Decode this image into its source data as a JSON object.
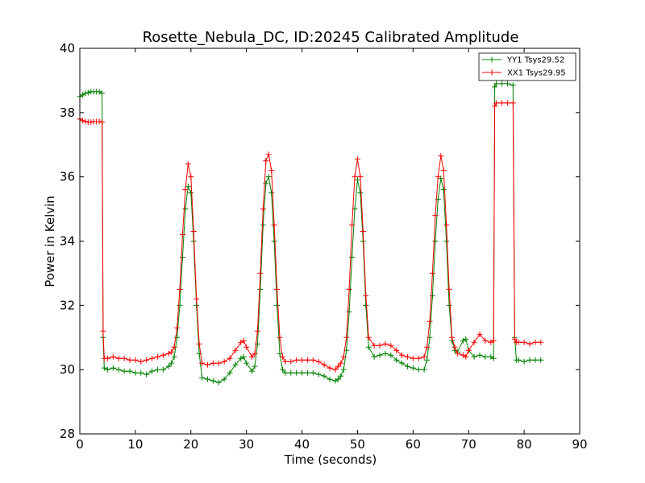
{
  "chart_data": {
    "type": "line",
    "title": "Rosette_Nebula_DC, ID:20245 Calibrated Amplitude",
    "xlabel": "Time (seconds)",
    "ylabel": "Power in Kelvin",
    "xlim": [
      0,
      90
    ],
    "ylim": [
      28,
      40
    ],
    "xticks": [
      "0",
      "10",
      "20",
      "30",
      "40",
      "50",
      "60",
      "70",
      "80",
      "90"
    ],
    "yticks": [
      "28",
      "30",
      "32",
      "34",
      "36",
      "38",
      "40"
    ],
    "grid": false,
    "legend_position": "top-right",
    "series": [
      {
        "name": "YY1 Tsys29.52",
        "color": "#008000",
        "marker": "plus",
        "x": [
          0.0,
          0.5,
          1.0,
          1.5,
          2.0,
          2.5,
          3.0,
          3.5,
          4.0,
          4.2,
          4.4,
          5.0,
          6.0,
          7.0,
          8.0,
          9.0,
          10.0,
          11.0,
          12.0,
          13.0,
          14.0,
          15.0,
          16.0,
          16.5,
          17.0,
          17.5,
          18.0,
          18.5,
          19.0,
          19.5,
          20.0,
          20.5,
          21.0,
          21.5,
          22.0,
          23.0,
          24.0,
          25.0,
          26.0,
          27.0,
          28.0,
          29.0,
          29.5,
          30.0,
          31.0,
          31.5,
          32.0,
          32.5,
          33.0,
          33.5,
          34.0,
          34.5,
          35.0,
          35.5,
          36.0,
          36.5,
          37.0,
          38.0,
          39.0,
          40.0,
          41.0,
          42.0,
          43.0,
          44.0,
          45.0,
          46.0,
          46.5,
          47.0,
          47.5,
          48.0,
          48.5,
          49.0,
          49.5,
          50.0,
          50.5,
          51.0,
          51.5,
          52.0,
          53.0,
          54.0,
          55.0,
          56.0,
          57.0,
          58.0,
          59.0,
          60.0,
          61.0,
          62.0,
          62.5,
          63.0,
          63.5,
          64.0,
          64.5,
          65.0,
          65.5,
          66.0,
          66.5,
          67.0,
          67.5,
          68.0,
          69.0,
          69.5,
          70.0,
          71.0,
          72.0,
          73.0,
          74.0,
          74.5,
          74.7,
          75.0,
          76.0,
          77.0,
          78.0,
          78.3,
          78.6,
          79.0,
          80.0,
          81.0,
          82.0,
          83.0
        ],
        "values": [
          38.5,
          38.55,
          38.6,
          38.62,
          38.65,
          38.65,
          38.65,
          38.65,
          38.6,
          31.0,
          30.05,
          30.0,
          30.05,
          30.0,
          29.95,
          29.95,
          29.9,
          29.9,
          29.85,
          29.95,
          30.0,
          30.0,
          30.1,
          30.2,
          30.4,
          31.0,
          32.0,
          33.5,
          35.0,
          35.7,
          35.5,
          34.0,
          32.0,
          30.5,
          29.75,
          29.7,
          29.65,
          29.6,
          29.7,
          29.9,
          30.15,
          30.35,
          30.4,
          30.2,
          29.95,
          30.1,
          30.8,
          32.5,
          34.5,
          35.8,
          36.0,
          35.5,
          34.0,
          32.0,
          30.5,
          30.0,
          29.9,
          29.9,
          29.9,
          29.9,
          29.9,
          29.9,
          29.85,
          29.8,
          29.7,
          29.65,
          29.7,
          29.8,
          30.0,
          30.6,
          31.8,
          33.5,
          35.0,
          35.9,
          35.5,
          34.0,
          32.0,
          30.7,
          30.4,
          30.45,
          30.5,
          30.45,
          30.3,
          30.2,
          30.1,
          30.05,
          30.0,
          30.0,
          30.3,
          31.0,
          32.3,
          34.0,
          35.3,
          35.95,
          35.6,
          34.0,
          32.0,
          30.9,
          30.6,
          30.55,
          30.9,
          30.95,
          30.6,
          30.4,
          30.45,
          30.4,
          30.4,
          30.35,
          38.8,
          38.9,
          38.9,
          38.9,
          38.85,
          31.0,
          30.3,
          30.3,
          30.25,
          30.3,
          30.3,
          30.3
        ]
      },
      {
        "name": "XX1 Tsys29.95",
        "color": "#ff0000",
        "marker": "plus",
        "x": [
          0.0,
          0.5,
          1.0,
          1.5,
          2.0,
          2.5,
          3.0,
          3.5,
          4.0,
          4.2,
          4.4,
          5.0,
          6.0,
          7.0,
          8.0,
          9.0,
          10.0,
          11.0,
          12.0,
          13.0,
          14.0,
          15.0,
          16.0,
          16.5,
          17.0,
          17.5,
          18.0,
          18.5,
          19.0,
          19.5,
          20.0,
          20.5,
          21.0,
          21.5,
          22.0,
          23.0,
          24.0,
          25.0,
          26.0,
          27.0,
          28.0,
          29.0,
          29.5,
          30.0,
          31.0,
          31.5,
          32.0,
          32.5,
          33.0,
          33.5,
          34.0,
          34.5,
          35.0,
          35.5,
          36.0,
          36.5,
          37.0,
          38.0,
          39.0,
          40.0,
          41.0,
          42.0,
          43.0,
          44.0,
          45.0,
          46.0,
          46.5,
          47.0,
          47.5,
          48.0,
          48.5,
          49.0,
          49.5,
          50.0,
          50.5,
          51.0,
          51.5,
          52.0,
          53.0,
          54.0,
          55.0,
          56.0,
          57.0,
          58.0,
          59.0,
          60.0,
          61.0,
          62.0,
          62.5,
          63.0,
          63.5,
          64.0,
          64.5,
          65.0,
          65.5,
          66.0,
          66.5,
          67.0,
          67.5,
          68.0,
          69.0,
          69.5,
          70.0,
          71.0,
          72.0,
          73.0,
          74.0,
          74.5,
          74.7,
          75.0,
          76.0,
          77.0,
          78.0,
          78.3,
          78.6,
          79.0,
          80.0,
          81.0,
          82.0,
          83.0
        ],
        "values": [
          37.8,
          37.75,
          37.72,
          37.7,
          37.7,
          37.72,
          37.72,
          37.72,
          37.7,
          31.2,
          30.35,
          30.35,
          30.4,
          30.35,
          30.35,
          30.3,
          30.3,
          30.25,
          30.3,
          30.35,
          30.4,
          30.45,
          30.5,
          30.55,
          30.7,
          31.3,
          32.5,
          34.2,
          35.6,
          36.4,
          36.0,
          34.3,
          32.2,
          30.8,
          30.2,
          30.15,
          30.2,
          30.2,
          30.25,
          30.35,
          30.6,
          30.85,
          30.9,
          30.7,
          30.4,
          30.5,
          31.2,
          33.0,
          35.0,
          36.5,
          36.7,
          36.2,
          34.5,
          32.5,
          31.0,
          30.4,
          30.25,
          30.25,
          30.3,
          30.3,
          30.3,
          30.3,
          30.25,
          30.15,
          30.05,
          30.0,
          30.1,
          30.2,
          30.4,
          31.0,
          32.5,
          34.5,
          36.0,
          36.55,
          36.0,
          34.3,
          32.3,
          31.0,
          30.75,
          30.75,
          30.8,
          30.75,
          30.6,
          30.45,
          30.4,
          30.35,
          30.35,
          30.4,
          30.7,
          31.5,
          33.0,
          34.8,
          36.0,
          36.65,
          36.2,
          34.5,
          32.5,
          31.0,
          30.7,
          30.5,
          30.45,
          30.4,
          30.6,
          30.85,
          31.1,
          30.9,
          30.85,
          30.9,
          38.2,
          38.3,
          38.3,
          38.3,
          38.3,
          30.95,
          30.85,
          30.85,
          30.85,
          30.8,
          30.85,
          30.85
        ]
      }
    ]
  }
}
